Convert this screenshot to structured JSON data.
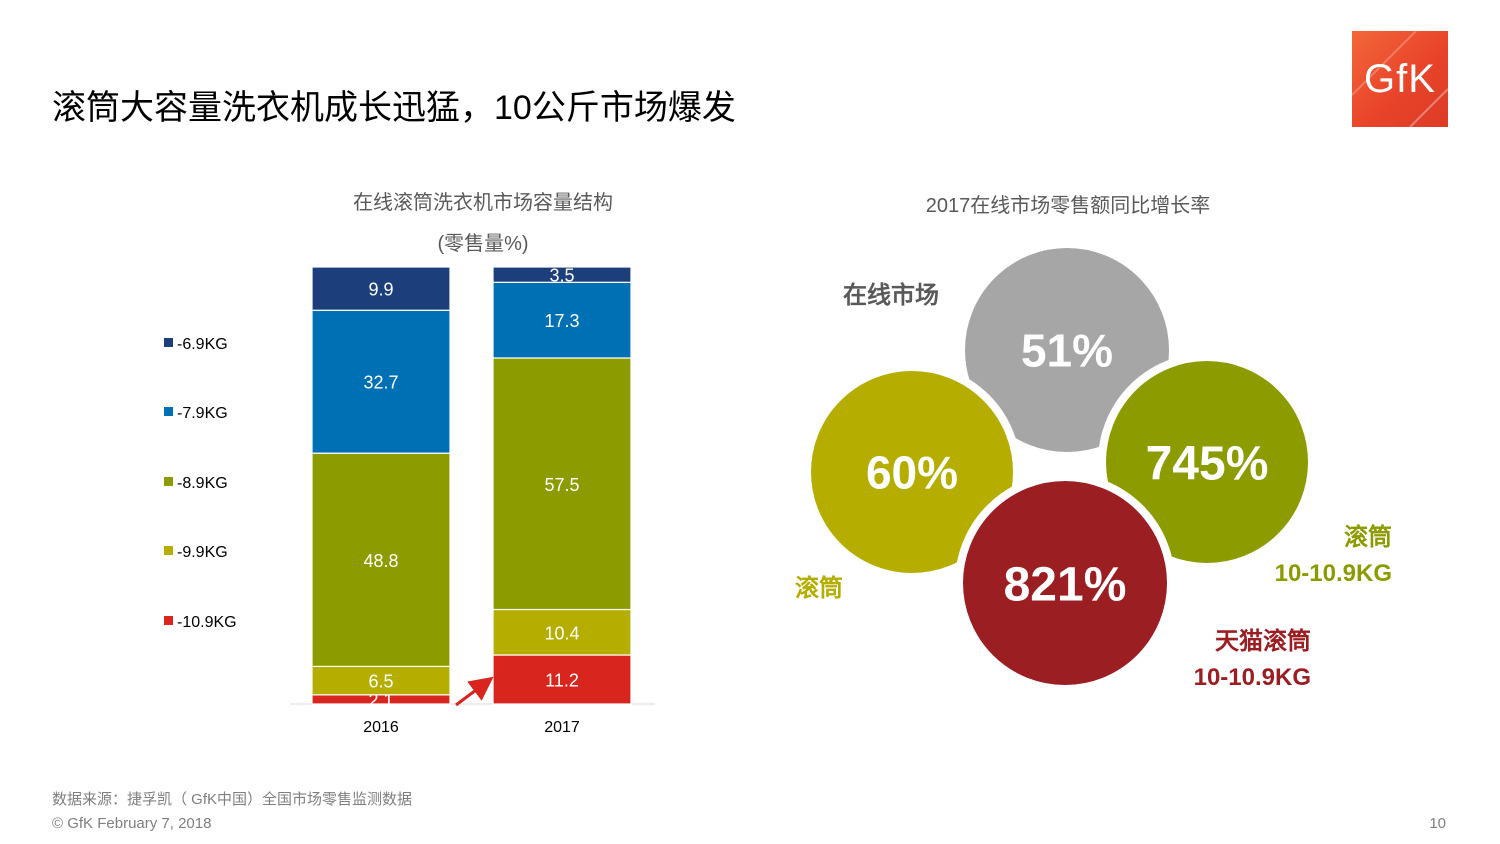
{
  "slide": {
    "title": "滚筒大容量洗衣机成长迅猛，10公斤市场爆发",
    "logo_text": "GfK",
    "footer_source": "数据来源：捷孚凯（ GfK中国）全国市场零售监测数据",
    "footer_copyright": "© GfK February 7, 2018",
    "page_number": "10"
  },
  "colors": {
    "dark_blue": "#1c3f7c",
    "blue": "#0070b5",
    "olive_green": "#8c9b00",
    "yellow_olive": "#b5ae00",
    "red": "#d8261e",
    "gray_circle": "#a6a6a6",
    "dark_red_circle": "#9b1e23",
    "arrow": "#d8261e"
  },
  "chart_data": [
    {
      "type": "bar",
      "stacked": true,
      "title": "在线滚筒洗衣机市场容量结构",
      "subtitle": "(零售量%)",
      "categories": [
        "2016",
        "2017"
      ],
      "series": [
        {
          "name": "-10.9KG",
          "color": "#d8261e",
          "values": [
            2.1,
            11.2
          ]
        },
        {
          "name": "-9.9KG",
          "color": "#b5ae00",
          "values": [
            6.5,
            10.4
          ]
        },
        {
          "name": "-8.9KG",
          "color": "#8c9b00",
          "values": [
            48.8,
            57.5
          ]
        },
        {
          "name": "-7.9KG",
          "color": "#0070b5",
          "values": [
            32.7,
            17.3
          ]
        },
        {
          "name": "-6.9KG",
          "color": "#1c3f7c",
          "values": [
            9.9,
            3.5
          ]
        }
      ],
      "legend_order": [
        "-6.9KG",
        "-7.9KG",
        "-8.9KG",
        "-9.9KG",
        "-10.9KG"
      ],
      "legend_position": "left",
      "ylim": [
        0,
        100
      ],
      "data_labels": true,
      "grid": false
    },
    {
      "type": "bubble",
      "title": "2017在线市场零售额同比增长率",
      "items": [
        {
          "value": "51%",
          "label": "在线市场",
          "color": "#a6a6a6",
          "label_color": "#595959"
        },
        {
          "value": "60%",
          "label": "滚筒",
          "color": "#b5ae00",
          "label_color": "#b5ae00"
        },
        {
          "value": "745%",
          "label": "滚筒",
          "sublabel": "10-10.9KG",
          "color": "#8c9b00",
          "label_color": "#8c9b00"
        },
        {
          "value": "821%",
          "label": "天猫滚筒",
          "sublabel": "10-10.9KG",
          "color": "#9b1e23",
          "label_color": "#9b1e23"
        }
      ]
    }
  ]
}
